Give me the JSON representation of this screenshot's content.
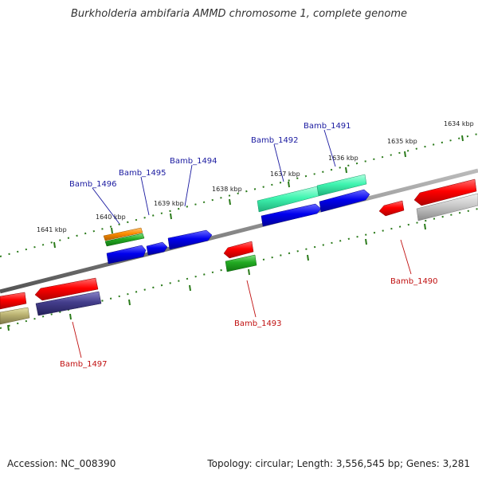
{
  "title": "Burkholderia ambifaria AMMD chromosome 1, complete genome",
  "footer": {
    "accession": "Accession: NC_008390",
    "topology": "Topology: circular; Length: 3,556,545 bp; Genes: 3,281"
  },
  "colors": {
    "backbone": "#888888",
    "tick": "#2a7a1a",
    "label_forward": "#1a1aa0",
    "label_reverse": "#c01010"
  },
  "kbp_labels": [
    "1634 kbp",
    "1635 kbp",
    "1636 kbp",
    "1637 kbp",
    "1638 kbp",
    "1639 kbp",
    "1640 kbp",
    "1641 kbp"
  ],
  "gene_labels": {
    "forward": [
      "Bamb_1491",
      "Bamb_1492",
      "Bamb_1494",
      "Bamb_1495",
      "Bamb_1496"
    ],
    "reverse": [
      "Bamb_1490",
      "Bamb_1493",
      "Bamb_1497"
    ]
  },
  "feature_colors": [
    "red",
    "green",
    "blue",
    "orange",
    "aquamarine",
    "silver",
    "dark slate blue",
    "khaki"
  ]
}
